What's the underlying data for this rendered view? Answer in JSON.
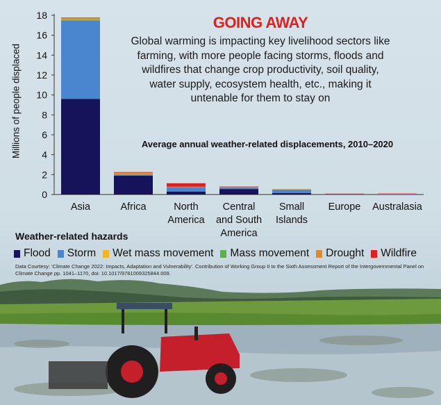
{
  "header": {
    "title": "GOING AWAY",
    "description": "Global warming is impacting key livelihood sectors like farming, with more people facing storms, floods and wildfires that change crop productivity, soil quality, water supply, ecosystem health, etc., making it untenable for them to stay on"
  },
  "chart_data": {
    "type": "bar",
    "stacked": true,
    "title": "Average annual weather-related displacements, 2010–2020",
    "ylabel": "Millions of people displaced",
    "xlabel": "",
    "ylim": [
      0,
      18
    ],
    "yticks": [
      0,
      2,
      4,
      6,
      8,
      10,
      12,
      14,
      16,
      18
    ],
    "grid": false,
    "legend_title": "Weather-related hazards",
    "legend_position": "bottom",
    "categories": [
      "Asia",
      "Africa",
      "North America",
      "Central and South America",
      "Small Islands",
      "Europe",
      "Australasia"
    ],
    "category_lines": [
      [
        "Asia"
      ],
      [
        "Africa"
      ],
      [
        "North",
        "America"
      ],
      [
        "Central",
        "and South",
        "America"
      ],
      [
        "Small",
        "Islands"
      ],
      [
        "Europe"
      ],
      [
        "Australasia"
      ]
    ],
    "series": [
      {
        "name": "Flood",
        "color": "#17135a",
        "values": [
          9.6,
          1.9,
          0.3,
          0.55,
          0.15,
          0.03,
          0.01
        ]
      },
      {
        "name": "Storm",
        "color": "#4a86cf",
        "values": [
          7.9,
          0.1,
          0.45,
          0.15,
          0.35,
          0.03,
          0.04
        ]
      },
      {
        "name": "Wet mass movement",
        "color": "#f4b428",
        "values": [
          0.05,
          0.02,
          0.01,
          0.03,
          0.01,
          0.01,
          0.01
        ]
      },
      {
        "name": "Mass movement",
        "color": "#5ab04a",
        "values": [
          0.05,
          0.02,
          0.01,
          0.02,
          0.01,
          0.0,
          0.0
        ]
      },
      {
        "name": "Drought",
        "color": "#e08a2c",
        "values": [
          0.15,
          0.2,
          0.01,
          0.03,
          0.02,
          0.0,
          0.02
        ]
      },
      {
        "name": "Wildfire",
        "color": "#e0201c",
        "values": [
          0.02,
          0.01,
          0.35,
          0.02,
          0.0,
          0.02,
          0.02
        ]
      }
    ]
  },
  "source": "Data Courtesy: 'Climate Change 2022: Impacts, Adaptation and Vulnerability'. Contribution of Working Group II to the Sixth Assessment Report of the Intergovernmental Panel on Climate Change pp. 1041–1170, doi: 10.1017/9781009325844.009."
}
